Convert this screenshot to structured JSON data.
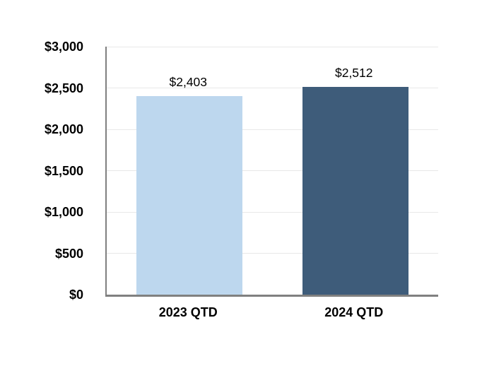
{
  "chart_data": {
    "type": "bar",
    "title": "",
    "xlabel": "",
    "ylabel": "",
    "categories": [
      "2023 QTD",
      "2024 QTD"
    ],
    "values": [
      2403,
      2512
    ],
    "value_labels": [
      "$2,403",
      "$2,512"
    ],
    "bar_colors": [
      "#BDD7EE",
      "#3E5C7A"
    ],
    "ylim": [
      0,
      3000
    ],
    "ytick_step": 500,
    "yticks": [
      0,
      500,
      1000,
      1500,
      2000,
      2500,
      3000
    ],
    "ytick_labels": [
      "$0",
      "$500",
      "$1,000",
      "$1,500",
      "$2,000",
      "$2,500",
      "$3,000"
    ],
    "grid": true,
    "legend_position": "none"
  },
  "colors": {
    "background": "#FFFFFF",
    "axis_line": "#808080",
    "gridline": "#E8E8E8",
    "text": "#000000",
    "bar_2023": "#BDD7EE",
    "bar_2024": "#3E5C7A"
  }
}
